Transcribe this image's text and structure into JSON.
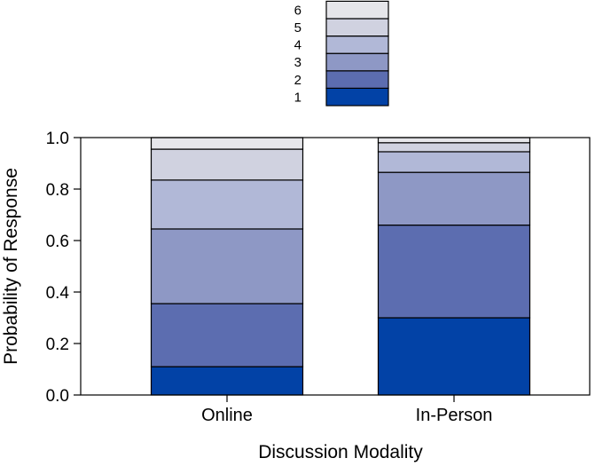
{
  "chart_data": {
    "type": "bar",
    "stacked": true,
    "title": "",
    "xlabel": "Discussion Modality",
    "ylabel": "Probability of Response",
    "ylim": [
      0,
      1
    ],
    "yticks": [
      "0.0",
      "0.2",
      "0.4",
      "0.6",
      "0.8",
      "1.0"
    ],
    "categories": [
      "Online",
      "In-Person"
    ],
    "legend_position": "top-center",
    "series": [
      {
        "name": "1",
        "color": "#0242a6",
        "values": [
          0.11,
          0.3
        ]
      },
      {
        "name": "2",
        "color": "#5c6db0",
        "values": [
          0.245,
          0.36
        ]
      },
      {
        "name": "3",
        "color": "#8e98c5",
        "values": [
          0.29,
          0.205
        ]
      },
      {
        "name": "4",
        "color": "#b1b8d7",
        "values": [
          0.19,
          0.08
        ]
      },
      {
        "name": "5",
        "color": "#d0d2e0",
        "values": [
          0.12,
          0.035
        ]
      },
      {
        "name": "6",
        "color": "#e6e6ea",
        "values": [
          0.045,
          0.02
        ]
      }
    ]
  }
}
